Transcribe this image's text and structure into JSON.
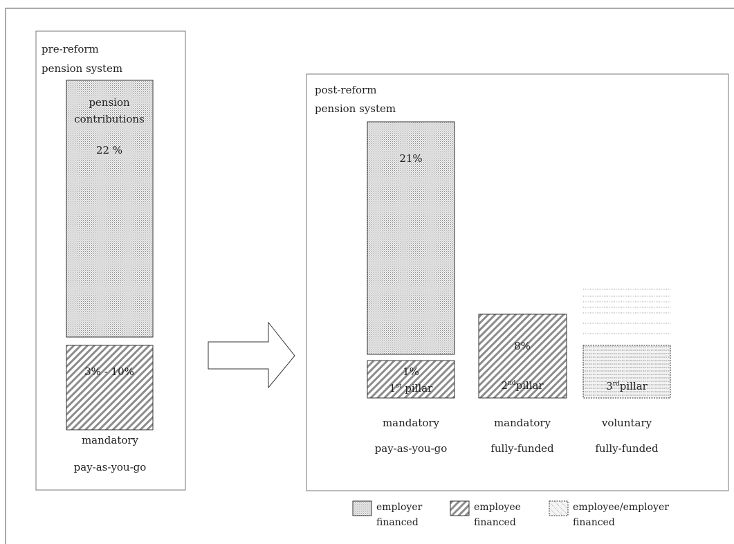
{
  "pre_reform": {
    "title_line1": "pre-reform",
    "title_line2": "pension system",
    "contrib_line1": "pension",
    "contrib_line2": "contributions",
    "contrib_rate": "22 %",
    "employee_rate": "3% - 10%",
    "type_line1": "mandatory",
    "type_line2": "pay-as-you-go"
  },
  "post_reform": {
    "title_line1": "post-reform",
    "title_line2": "pension system",
    "pillar1": {
      "employer_rate": "21%",
      "employee_rate": "1%",
      "ordinal_num": "1",
      "ordinal_sup": "st",
      "pillar_word": " pillar",
      "type_line1": "mandatory",
      "type_line2": "pay-as-you-go"
    },
    "pillar2": {
      "rate": "8%",
      "ordinal_num": "2",
      "ordinal_sup": "nd",
      "pillar_word": "pillar",
      "type_line1": "mandatory",
      "type_line2": "fully-funded"
    },
    "pillar3": {
      "ordinal_num": "3",
      "ordinal_sup": "rd",
      "pillar_word": "pillar",
      "type_line1": "voluntary",
      "type_line2": "fully-funded"
    }
  },
  "legend": [
    {
      "pattern": "dots",
      "line1": "employer",
      "line2": "financed"
    },
    {
      "pattern": "diag",
      "line1": "employee",
      "line2": "financed"
    },
    {
      "pattern": "mixed",
      "line1": "employee/employer",
      "line2": "financed"
    }
  ],
  "colors": {
    "stroke": "#333333",
    "dot_fill": "#e6e6e6",
    "dots": "#8a8a8a",
    "hatch": "#7a7a7a"
  }
}
